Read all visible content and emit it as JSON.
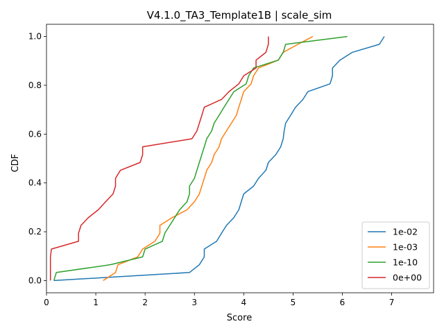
{
  "chart_data": {
    "type": "line",
    "title": "V4.1.0_TA3_Template1B | scale_sim",
    "xlabel": "Score",
    "ylabel": "CDF",
    "xlim": [
      0,
      7.85
    ],
    "ylim": [
      -0.05,
      1.05
    ],
    "xticks": [
      0,
      1,
      2,
      3,
      4,
      5,
      6,
      7
    ],
    "yticks": [
      0.0,
      0.2,
      0.4,
      0.6,
      0.8,
      1.0
    ],
    "xtick_labels": [
      "0",
      "1",
      "2",
      "3",
      "4",
      "5",
      "6",
      "7"
    ],
    "ytick_labels": [
      "0.0",
      "0.2",
      "0.4",
      "0.6",
      "0.8",
      "1.0"
    ],
    "grid": false,
    "legend_position": "lower-right",
    "series": [
      {
        "name": "1e-02",
        "color": "#1f77b4",
        "points": [
          [
            0.15,
            0.0
          ],
          [
            2.9,
            0.033
          ],
          [
            3.1,
            0.065
          ],
          [
            3.2,
            0.097
          ],
          [
            3.2,
            0.129
          ],
          [
            3.45,
            0.161
          ],
          [
            3.55,
            0.194
          ],
          [
            3.65,
            0.226
          ],
          [
            3.8,
            0.258
          ],
          [
            3.9,
            0.29
          ],
          [
            3.95,
            0.323
          ],
          [
            4.0,
            0.355
          ],
          [
            4.2,
            0.387
          ],
          [
            4.3,
            0.419
          ],
          [
            4.45,
            0.452
          ],
          [
            4.5,
            0.484
          ],
          [
            4.65,
            0.516
          ],
          [
            4.75,
            0.548
          ],
          [
            4.8,
            0.581
          ],
          [
            4.82,
            0.613
          ],
          [
            4.85,
            0.645
          ],
          [
            4.95,
            0.677
          ],
          [
            5.05,
            0.71
          ],
          [
            5.2,
            0.742
          ],
          [
            5.3,
            0.774
          ],
          [
            5.75,
            0.806
          ],
          [
            5.8,
            0.839
          ],
          [
            5.8,
            0.871
          ],
          [
            5.95,
            0.903
          ],
          [
            6.2,
            0.935
          ],
          [
            6.75,
            0.968
          ],
          [
            6.85,
            1.0
          ]
        ]
      },
      {
        "name": "1e-03",
        "color": "#ff7f0e",
        "points": [
          [
            1.15,
            0.0
          ],
          [
            1.4,
            0.033
          ],
          [
            1.45,
            0.065
          ],
          [
            1.85,
            0.097
          ],
          [
            1.95,
            0.129
          ],
          [
            2.2,
            0.161
          ],
          [
            2.3,
            0.194
          ],
          [
            2.3,
            0.226
          ],
          [
            2.55,
            0.258
          ],
          [
            2.85,
            0.29
          ],
          [
            3.0,
            0.323
          ],
          [
            3.1,
            0.355
          ],
          [
            3.15,
            0.387
          ],
          [
            3.2,
            0.419
          ],
          [
            3.25,
            0.452
          ],
          [
            3.35,
            0.484
          ],
          [
            3.4,
            0.516
          ],
          [
            3.5,
            0.548
          ],
          [
            3.55,
            0.581
          ],
          [
            3.65,
            0.613
          ],
          [
            3.75,
            0.645
          ],
          [
            3.85,
            0.677
          ],
          [
            3.9,
            0.71
          ],
          [
            3.95,
            0.742
          ],
          [
            4.0,
            0.774
          ],
          [
            4.15,
            0.806
          ],
          [
            4.2,
            0.839
          ],
          [
            4.3,
            0.871
          ],
          [
            4.7,
            0.903
          ],
          [
            4.8,
            0.935
          ],
          [
            5.1,
            0.968
          ],
          [
            5.4,
            1.0
          ]
        ]
      },
      {
        "name": "1e-10",
        "color": "#2ca02c",
        "points": [
          [
            0.15,
            0.0
          ],
          [
            0.2,
            0.033
          ],
          [
            1.3,
            0.065
          ],
          [
            1.95,
            0.097
          ],
          [
            2.0,
            0.129
          ],
          [
            2.35,
            0.161
          ],
          [
            2.4,
            0.194
          ],
          [
            2.5,
            0.226
          ],
          [
            2.6,
            0.258
          ],
          [
            2.7,
            0.29
          ],
          [
            2.85,
            0.323
          ],
          [
            2.9,
            0.355
          ],
          [
            2.9,
            0.387
          ],
          [
            3.0,
            0.419
          ],
          [
            3.05,
            0.452
          ],
          [
            3.1,
            0.484
          ],
          [
            3.15,
            0.516
          ],
          [
            3.2,
            0.548
          ],
          [
            3.25,
            0.581
          ],
          [
            3.35,
            0.613
          ],
          [
            3.4,
            0.645
          ],
          [
            3.5,
            0.677
          ],
          [
            3.6,
            0.71
          ],
          [
            3.7,
            0.742
          ],
          [
            3.8,
            0.774
          ],
          [
            4.05,
            0.806
          ],
          [
            4.1,
            0.839
          ],
          [
            4.2,
            0.871
          ],
          [
            4.7,
            0.903
          ],
          [
            4.8,
            0.935
          ],
          [
            4.85,
            0.968
          ],
          [
            6.1,
            1.0
          ]
        ]
      },
      {
        "name": "0e+00",
        "color": "#d62728",
        "points": [
          [
            0.08,
            0.0
          ],
          [
            0.08,
            0.033
          ],
          [
            0.08,
            0.065
          ],
          [
            0.08,
            0.097
          ],
          [
            0.1,
            0.129
          ],
          [
            0.65,
            0.161
          ],
          [
            0.65,
            0.194
          ],
          [
            0.7,
            0.226
          ],
          [
            0.85,
            0.258
          ],
          [
            1.05,
            0.29
          ],
          [
            1.2,
            0.323
          ],
          [
            1.35,
            0.355
          ],
          [
            1.4,
            0.387
          ],
          [
            1.4,
            0.419
          ],
          [
            1.5,
            0.452
          ],
          [
            1.9,
            0.484
          ],
          [
            1.95,
            0.516
          ],
          [
            1.95,
            0.548
          ],
          [
            2.95,
            0.581
          ],
          [
            3.05,
            0.613
          ],
          [
            3.1,
            0.645
          ],
          [
            3.15,
            0.677
          ],
          [
            3.2,
            0.71
          ],
          [
            3.55,
            0.742
          ],
          [
            3.7,
            0.774
          ],
          [
            3.9,
            0.806
          ],
          [
            4.0,
            0.839
          ],
          [
            4.25,
            0.871
          ],
          [
            4.25,
            0.903
          ],
          [
            4.45,
            0.935
          ],
          [
            4.5,
            0.968
          ],
          [
            4.5,
            1.0
          ]
        ]
      }
    ]
  }
}
